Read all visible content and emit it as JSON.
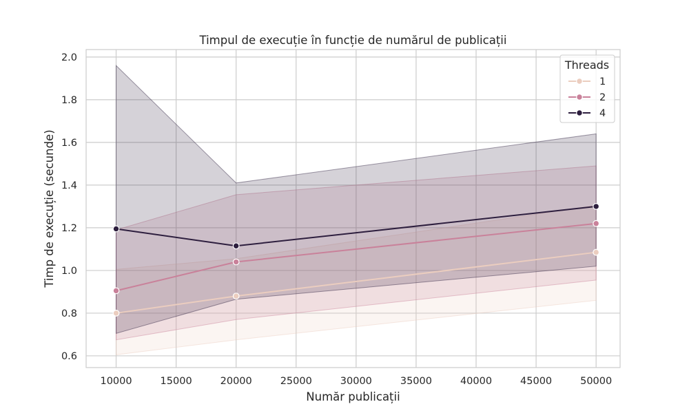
{
  "chart_data": {
    "type": "line",
    "title": "Timpul de execuție în funcție de numărul de publicații",
    "xlabel": "Număr publicații",
    "ylabel": "Timp de execuție (secunde)",
    "xlim": [
      7500,
      52000
    ],
    "ylim": [
      0.545,
      2.035
    ],
    "xticks": [
      10000,
      15000,
      20000,
      25000,
      30000,
      35000,
      40000,
      45000,
      50000
    ],
    "yticks": [
      0.6,
      0.8,
      1.0,
      1.2,
      1.4,
      1.6,
      1.8,
      2.0
    ],
    "ytick_labels": [
      "0.6",
      "0.8",
      "1.0",
      "1.2",
      "1.4",
      "1.6",
      "1.8",
      "2.0"
    ],
    "grid": true,
    "legend": {
      "title": "Threads",
      "placement": "top-right"
    },
    "x": [
      10000,
      20000,
      50000
    ],
    "series": [
      {
        "name": "1",
        "color": "#ebcdbf",
        "values": [
          0.8,
          0.88,
          1.085
        ],
        "ci_lower": [
          0.605,
          0.675,
          0.86
        ],
        "ci_upper": [
          1.005,
          1.055,
          1.305
        ],
        "band_opacity": 0.2
      },
      {
        "name": "2",
        "color": "#c9819a",
        "values": [
          0.905,
          1.04,
          1.22
        ],
        "ci_lower": [
          0.675,
          0.77,
          0.955
        ],
        "ci_upper": [
          1.19,
          1.355,
          1.49
        ],
        "band_opacity": 0.2
      },
      {
        "name": "4",
        "color": "#2d1e3e",
        "values": [
          1.195,
          1.115,
          1.3
        ],
        "ci_lower": [
          0.705,
          0.865,
          1.02
        ],
        "ci_upper": [
          1.96,
          1.41,
          1.64
        ],
        "band_opacity": 0.2
      }
    ]
  }
}
